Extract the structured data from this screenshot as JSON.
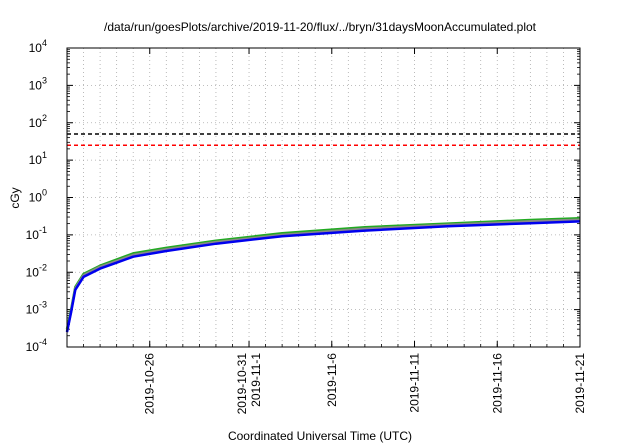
{
  "chart_data": {
    "type": "line",
    "title": "/data/run/goesPlots/archive/2019-11-20/flux/../bryn/31daysMoonAccumulated.plot",
    "xlabel": "Coordinated Universal Time (UTC)",
    "ylabel": "cGy",
    "yscale": "log",
    "ylim": [
      0.0001,
      10000
    ],
    "xlim": [
      "2019-10-21",
      "2019-11-21"
    ],
    "grid": true,
    "y_ticks": [
      {
        "value": 0.0001,
        "base": "10",
        "exp": "-4"
      },
      {
        "value": 0.001,
        "base": "10",
        "exp": "-3"
      },
      {
        "value": 0.01,
        "base": "10",
        "exp": "-2"
      },
      {
        "value": 0.1,
        "base": "10",
        "exp": "-1"
      },
      {
        "value": 1,
        "base": "10",
        "exp": "0"
      },
      {
        "value": 10,
        "base": "10",
        "exp": "1"
      },
      {
        "value": 100,
        "base": "10",
        "exp": "2"
      },
      {
        "value": 1000,
        "base": "10",
        "exp": "3"
      },
      {
        "value": 10000,
        "base": "10",
        "exp": "4"
      }
    ],
    "x_ticks": [
      {
        "date": "2019-10-26",
        "labels": [
          "2019-10-26"
        ]
      },
      {
        "date": "2019-11-01",
        "labels": [
          "2019-10-31",
          "2019-11-1"
        ]
      },
      {
        "date": "2019-11-06",
        "labels": [
          "2019-11-6"
        ]
      },
      {
        "date": "2019-11-11",
        "labels": [
          "2019-11-11"
        ]
      },
      {
        "date": "2019-11-16",
        "labels": [
          "2019-11-16"
        ]
      },
      {
        "date": "2019-11-21",
        "labels": [
          "2019-11-21"
        ]
      }
    ],
    "reference_lines": [
      {
        "value": 50,
        "color": "#000000",
        "style": "dashed"
      },
      {
        "value": 25,
        "color": "#ff0000",
        "style": "dashed"
      }
    ],
    "series": [
      {
        "color": "#22aa22",
        "x": [
          "2019-10-21",
          "2019-10-21T06",
          "2019-10-21T12",
          "2019-10-22",
          "2019-10-23",
          "2019-10-24",
          "2019-10-25",
          "2019-10-27",
          "2019-10-30",
          "2019-11-03",
          "2019-11-08",
          "2019-11-13",
          "2019-11-18",
          "2019-11-21"
        ],
        "y": [
          0.0003,
          0.001,
          0.004,
          0.009,
          0.015,
          0.022,
          0.032,
          0.045,
          0.07,
          0.11,
          0.16,
          0.2,
          0.25,
          0.28
        ]
      },
      {
        "color": "#888888",
        "x": [
          "2019-10-21",
          "2019-10-21T06",
          "2019-10-21T12",
          "2019-10-22",
          "2019-10-23",
          "2019-10-24",
          "2019-10-25",
          "2019-10-27",
          "2019-10-30",
          "2019-11-03",
          "2019-11-08",
          "2019-11-13",
          "2019-11-18",
          "2019-11-21"
        ],
        "y": [
          0.00027,
          0.0009,
          0.0037,
          0.0083,
          0.014,
          0.02,
          0.029,
          0.041,
          0.064,
          0.1,
          0.145,
          0.185,
          0.23,
          0.255
        ]
      },
      {
        "color": "#0000ee",
        "x": [
          "2019-10-21",
          "2019-10-21T06",
          "2019-10-21T12",
          "2019-10-22",
          "2019-10-23",
          "2019-10-24",
          "2019-10-25",
          "2019-10-27",
          "2019-10-30",
          "2019-11-03",
          "2019-11-08",
          "2019-11-13",
          "2019-11-18",
          "2019-11-21"
        ],
        "y": [
          0.00025,
          0.00085,
          0.0034,
          0.0075,
          0.0125,
          0.018,
          0.026,
          0.037,
          0.058,
          0.092,
          0.13,
          0.17,
          0.205,
          0.23
        ]
      }
    ]
  }
}
